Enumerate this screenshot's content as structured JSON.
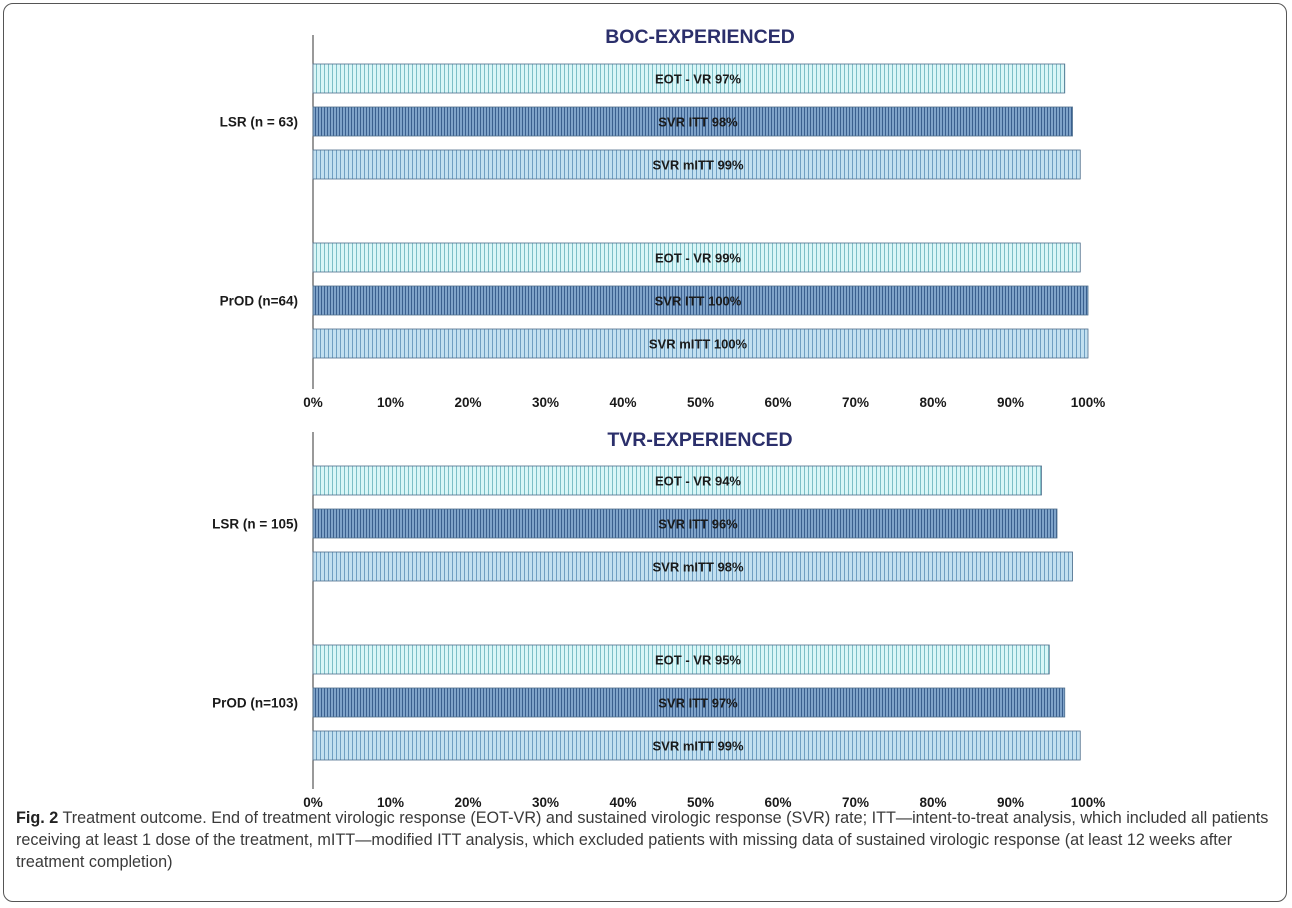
{
  "chart_data": [
    {
      "type": "bar",
      "orientation": "horizontal",
      "title": "BOC-EXPERIENCED",
      "xlim": [
        0,
        100
      ],
      "x_ticks": [
        "0%",
        "10%",
        "20%",
        "30%",
        "40%",
        "50%",
        "60%",
        "70%",
        "80%",
        "90%",
        "100%"
      ],
      "groups": [
        {
          "label": "LSR (n = 63)",
          "bars": [
            {
              "label": "EOT - VR 97%",
              "value": 97,
              "style": "light"
            },
            {
              "label": "SVR ITT 98%",
              "value": 98,
              "style": "dark"
            },
            {
              "label": "SVR mITT 99%",
              "value": 99,
              "style": "medium"
            }
          ]
        },
        {
          "label": "PrOD (n=64)",
          "bars": [
            {
              "label": "EOT - VR 99%",
              "value": 99,
              "style": "light"
            },
            {
              "label": "SVR ITT 100%",
              "value": 100,
              "style": "dark"
            },
            {
              "label": "SVR mITT 100%",
              "value": 100,
              "style": "medium"
            }
          ]
        }
      ]
    },
    {
      "type": "bar",
      "orientation": "horizontal",
      "title": "TVR-EXPERIENCED",
      "xlim": [
        0,
        100
      ],
      "x_ticks": [
        "0%",
        "10%",
        "20%",
        "30%",
        "40%",
        "50%",
        "60%",
        "70%",
        "80%",
        "90%",
        "100%"
      ],
      "groups": [
        {
          "label": "LSR (n = 105)",
          "bars": [
            {
              "label": "EOT - VR 94%",
              "value": 94,
              "style": "light"
            },
            {
              "label": "SVR ITT 96%",
              "value": 96,
              "style": "dark"
            },
            {
              "label": "SVR mITT 98%",
              "value": 98,
              "style": "medium"
            }
          ]
        },
        {
          "label": "PrOD (n=103)",
          "bars": [
            {
              "label": "EOT - VR 95%",
              "value": 95,
              "style": "light"
            },
            {
              "label": "SVR ITT 97%",
              "value": 97,
              "style": "dark"
            },
            {
              "label": "SVR mITT 99%",
              "value": 99,
              "style": "medium"
            }
          ]
        }
      ]
    }
  ],
  "caption": {
    "label": "Fig. 2",
    "text": " Treatment outcome. End of treatment virologic response (EOT-VR) and sustained virologic response (SVR) rate; ITT—intent-to-treat analysis, which included all patients receiving at least 1 dose of the treatment, mITT—modified ITT analysis, which excluded patients with missing data of sustained virologic response (at least 12 weeks after treatment completion)"
  },
  "colors": {
    "title": "#2b2f6b",
    "text": "#1a1a1a",
    "light_fill": "#d9f6f7",
    "light_stripe": "#7cbfc7",
    "dark_fill": "#7fa3c9",
    "dark_stripe": "#3a5f8e",
    "medium_fill": "#c2e0f0",
    "medium_stripe": "#6f9fc2",
    "bar_border": "#4e6e8c"
  }
}
